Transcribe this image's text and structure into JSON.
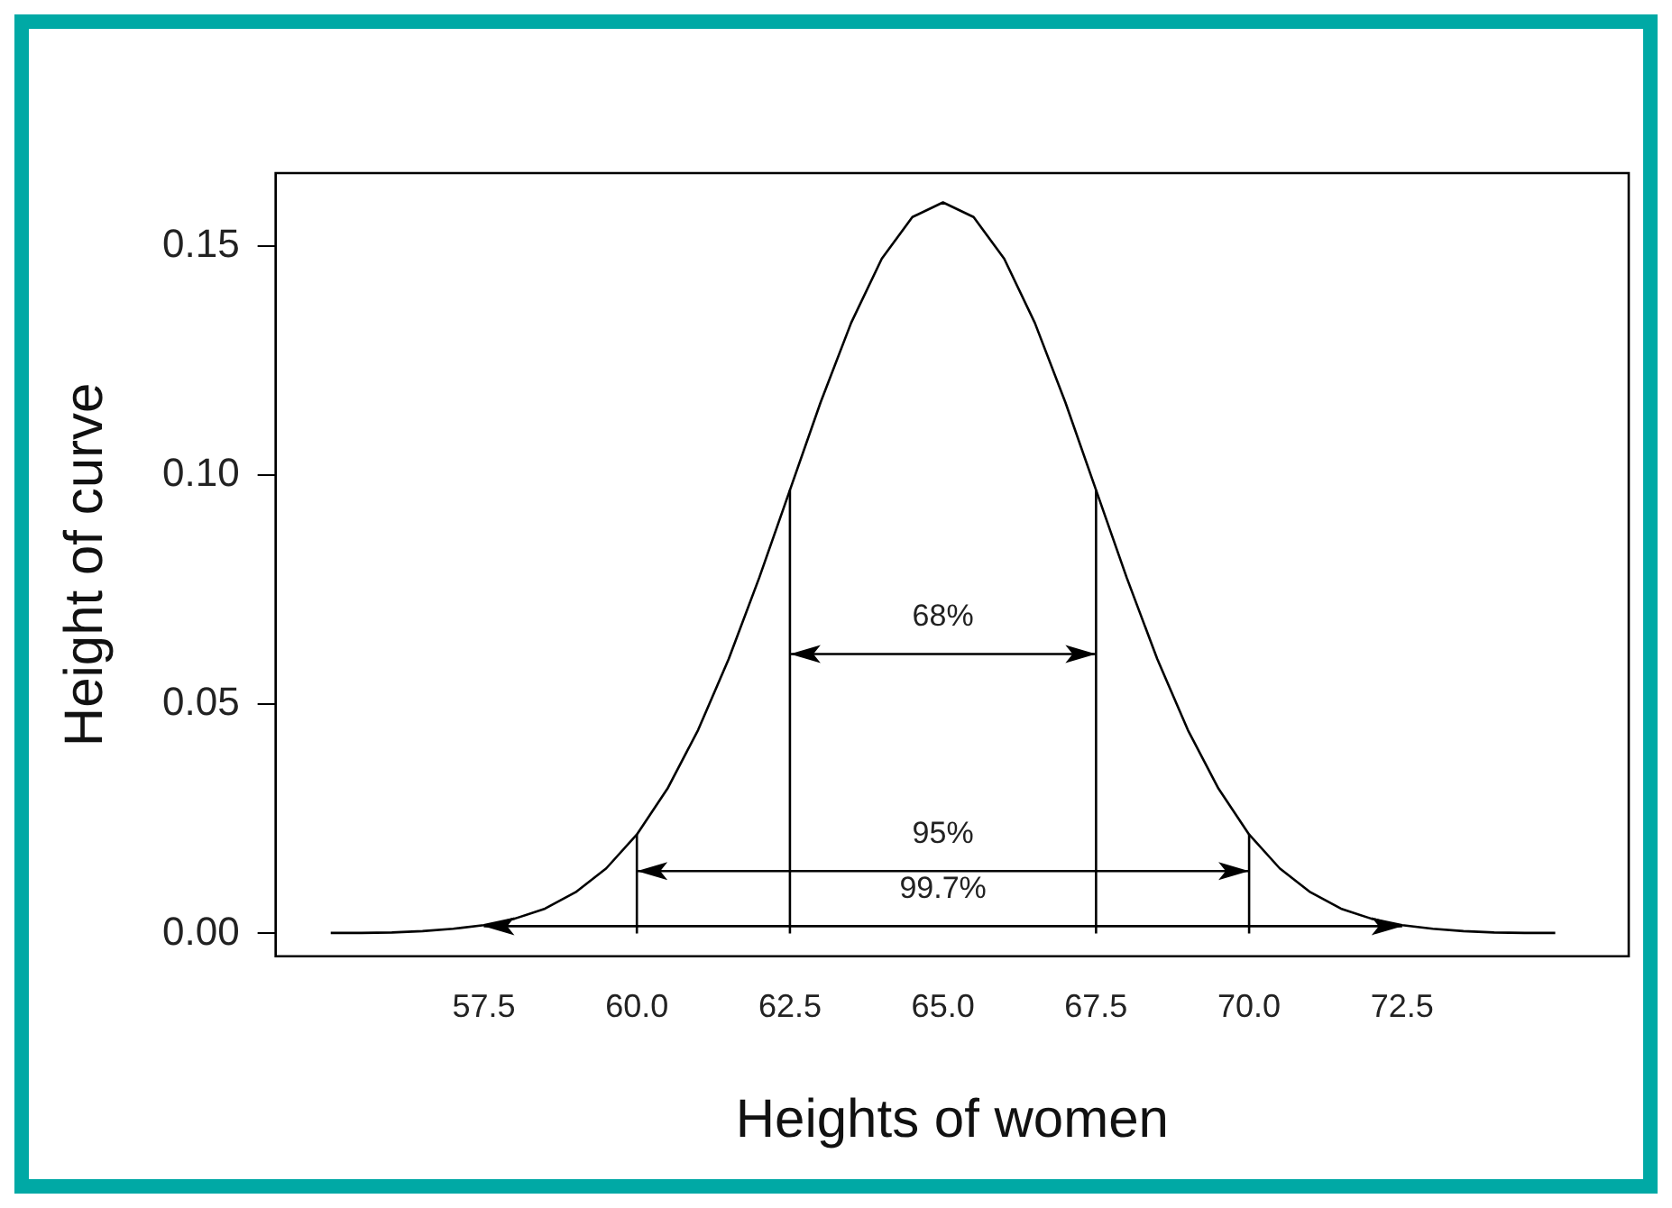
{
  "chart_data": {
    "type": "line",
    "xlabel": "Heights of women",
    "ylabel": "Height of curve",
    "xlim": [
      54.1,
      76.2
    ],
    "ylim": [
      -0.005,
      0.166
    ],
    "xticks": [
      {
        "value": 57.5,
        "label": "57.5"
      },
      {
        "value": 60,
        "label": "60.0"
      },
      {
        "value": 62.5,
        "label": "62.5"
      },
      {
        "value": 65,
        "label": "65.0"
      },
      {
        "value": 67.5,
        "label": "67.5"
      },
      {
        "value": 70,
        "label": "70.0"
      },
      {
        "value": 72.5,
        "label": "72.5"
      }
    ],
    "yticks": [
      {
        "value": 0,
        "label": "0.00"
      },
      {
        "value": 0.05,
        "label": "0.05"
      },
      {
        "value": 0.1,
        "label": "0.10"
      },
      {
        "value": 0.15,
        "label": "0.15"
      }
    ],
    "grid": false,
    "legend": false,
    "marker": "none",
    "line_style": "solid",
    "series": [
      {
        "color": "#000000",
        "x": [
          55,
          55.5,
          56,
          56.5,
          57,
          57.5,
          58,
          58.5,
          59,
          59.5,
          60,
          60.5,
          61,
          61.5,
          62,
          62.5,
          63,
          63.5,
          64,
          64.5,
          65,
          65.5,
          66,
          66.5,
          67,
          67.5,
          68,
          68.5,
          69,
          69.5,
          70,
          70.5,
          71,
          71.5,
          72,
          72.5,
          73,
          73.5,
          74,
          74.5,
          75
        ],
        "values": [
          0.0001,
          0.0001,
          0.0002,
          0.0005,
          0.001,
          0.0018,
          0.0032,
          0.0054,
          0.009,
          0.0142,
          0.0216,
          0.0316,
          0.0444,
          0.0599,
          0.0777,
          0.0968,
          0.1159,
          0.1333,
          0.1473,
          0.1564,
          0.1596,
          0.1564,
          0.1473,
          0.1333,
          0.1159,
          0.0968,
          0.0777,
          0.0599,
          0.0444,
          0.0316,
          0.0216,
          0.0142,
          0.009,
          0.0054,
          0.0032,
          0.0018,
          0.001,
          0.0005,
          0.0002,
          0.0001,
          0.0001
        ]
      },
      {
        "color": "#000000",
        "x": [
          60,
          60
        ],
        "values": [
          0,
          0.0216
        ]
      },
      {
        "color": "#000000",
        "x": [
          62.5,
          62.5
        ],
        "values": [
          0,
          0.0968
        ]
      },
      {
        "color": "#000000",
        "x": [
          67.5,
          67.5
        ],
        "values": [
          0,
          0.0968
        ]
      },
      {
        "color": "#000000",
        "x": [
          70,
          70
        ],
        "values": [
          0,
          0.0216
        ]
      }
    ],
    "annotations": [
      "68%",
      "95%",
      "99.7%"
    ]
  }
}
